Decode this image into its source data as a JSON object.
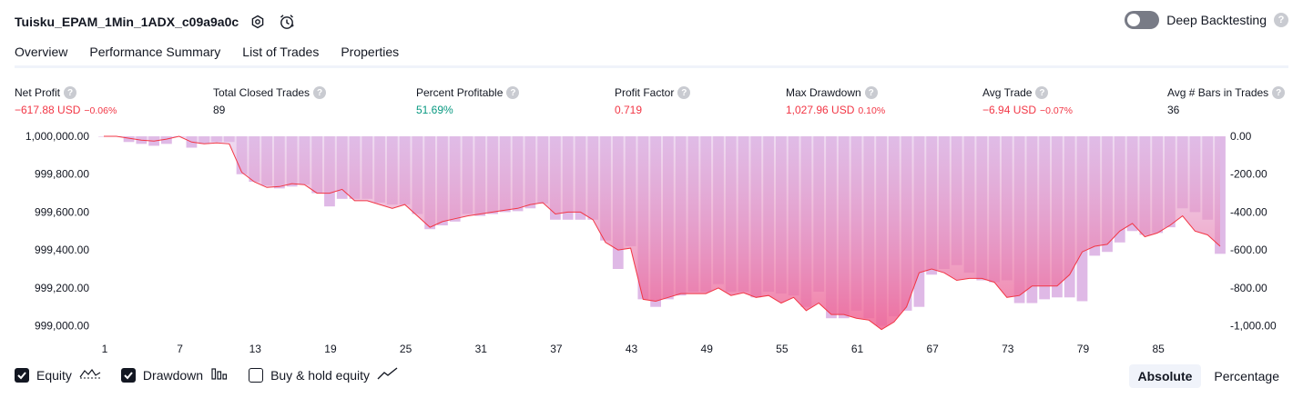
{
  "header": {
    "title": "Tuisku_EPAM_1Min_1ADX_c09a9a0c",
    "deep_backtesting_label": "Deep Backtesting",
    "help_glyph": "?"
  },
  "tabs": [
    {
      "label": "Overview",
      "active": true
    },
    {
      "label": "Performance Summary",
      "active": false
    },
    {
      "label": "List of Trades",
      "active": false
    },
    {
      "label": "Properties",
      "active": false
    }
  ],
  "metrics": {
    "net_profit": {
      "label": "Net Profit",
      "value": "−617.88 USD",
      "pct": "−0.06%"
    },
    "total_closed_trades": {
      "label": "Total Closed Trades",
      "value": "89"
    },
    "percent_profitable": {
      "label": "Percent Profitable",
      "value": "51.69%"
    },
    "profit_factor": {
      "label": "Profit Factor",
      "value": "0.719"
    },
    "max_drawdown": {
      "label": "Max Drawdown",
      "value": "1,027.96 USD",
      "pct": "0.10%"
    },
    "avg_trade": {
      "label": "Avg Trade",
      "value": "−6.94 USD",
      "pct": "−0.07%"
    },
    "avg_bars": {
      "label": "Avg # Bars in Trades",
      "value": "36"
    }
  },
  "legend": {
    "equity": {
      "label": "Equity",
      "checked": true
    },
    "drawdown": {
      "label": "Drawdown",
      "checked": true
    },
    "buy_hold": {
      "label": "Buy & hold equity",
      "checked": false
    }
  },
  "modes": {
    "absolute": "Absolute",
    "percentage": "Percentage",
    "selected": "absolute"
  },
  "colors": {
    "equity_line": "#f23645",
    "drawdown_bars": "#ce93d8",
    "positive": "#089981",
    "negative": "#f23645"
  },
  "chart_data": {
    "type": "area",
    "x_ticks": [
      "1",
      "7",
      "13",
      "19",
      "25",
      "31",
      "37",
      "43",
      "49",
      "55",
      "61",
      "67",
      "73",
      "79",
      "85"
    ],
    "left_axis": {
      "ticks": [
        "1,000,000.00",
        "999,800.00",
        "999,600.00",
        "999,400.00",
        "999,200.00",
        "999,000.00"
      ],
      "ylim": [
        998950,
        1000000
      ]
    },
    "right_axis": {
      "ticks": [
        "0.00",
        "-200.00",
        "-400.00",
        "-600.00",
        "-800.00",
        "-1,000.00"
      ],
      "ylim": [
        -1050,
        0
      ]
    },
    "series": [
      {
        "type": "line",
        "values": [
          1000000,
          1000000,
          999990,
          999980,
          999975,
          999985,
          1000000,
          999970,
          999960,
          999965,
          999960,
          999810,
          999760,
          999730,
          999735,
          999750,
          999745,
          999700,
          999700,
          999720,
          999660,
          999660,
          999640,
          999620,
          999640,
          999580,
          999520,
          999550,
          999565,
          999580,
          999590,
          999600,
          999610,
          999620,
          999640,
          999650,
          999590,
          999600,
          999600,
          999560,
          999440,
          999400,
          999410,
          999140,
          999130,
          999150,
          999170,
          999170,
          999170,
          999200,
          999160,
          999175,
          999150,
          999160,
          999120,
          999150,
          999080,
          999120,
          999060,
          999060,
          999040,
          999030,
          998980,
          999020,
          999100,
          999280,
          999300,
          999280,
          999240,
          999250,
          999250,
          999230,
          999150,
          999160,
          999210,
          999210,
          999210,
          999270,
          999390,
          999420,
          999430,
          999500,
          999540,
          999470,
          999490,
          999530,
          999580,
          999500,
          999480,
          999420
        ]
      },
      {
        "type": "bar",
        "values": [
          0,
          0,
          -30,
          -40,
          -50,
          -40,
          0,
          -60,
          -40,
          -30,
          -30,
          -200,
          -240,
          -260,
          -275,
          -265,
          -255,
          -300,
          -370,
          -330,
          -330,
          -330,
          -350,
          -360,
          -360,
          -410,
          -490,
          -470,
          -450,
          -410,
          -420,
          -410,
          -400,
          -395,
          -380,
          -355,
          -440,
          -440,
          -440,
          -440,
          -550,
          -700,
          -580,
          -860,
          -900,
          -860,
          -840,
          -820,
          -820,
          -780,
          -820,
          -820,
          -850,
          -820,
          -830,
          -840,
          -900,
          -820,
          -960,
          -960,
          -920,
          -960,
          -1000,
          -950,
          -920,
          -900,
          -730,
          -700,
          -680,
          -720,
          -760,
          -770,
          -760,
          -880,
          -880,
          -860,
          -850,
          -850,
          -870,
          -630,
          -610,
          -560,
          -500,
          -520,
          -510,
          -480,
          -380,
          -400,
          -440,
          -620
        ]
      }
    ]
  }
}
